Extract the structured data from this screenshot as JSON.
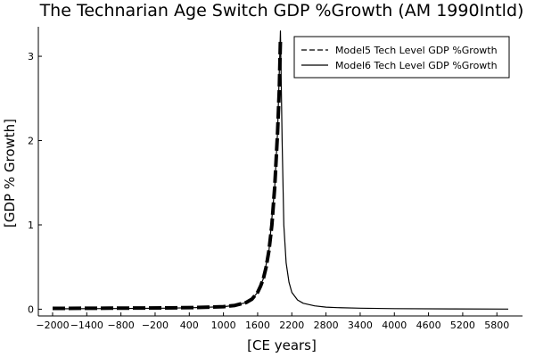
{
  "chart_data": {
    "type": "line",
    "title": "The Technarian Age Switch GDP %Growth (AM 1990Intld)",
    "xlabel": "[CE years]",
    "ylabel": "[GDP % Growth]",
    "xlim": [
      -2250,
      6250
    ],
    "ylim": [
      -0.08,
      3.35
    ],
    "x_ticks": [
      -2000,
      -1400,
      -800,
      -200,
      400,
      1000,
      1600,
      2200,
      2800,
      3400,
      4000,
      4600,
      5200,
      5800
    ],
    "x_tick_labels": [
      "−2000",
      "−1400",
      "−800",
      "−200",
      "400",
      "1000",
      "1600",
      "2200",
      "2800",
      "3400",
      "4000",
      "4600",
      "5200",
      "5800"
    ],
    "y_ticks": [
      0,
      1,
      2,
      3
    ],
    "y_tick_labels": [
      "0",
      "1",
      "2",
      "3"
    ],
    "grid": false,
    "legend_position": "top-right",
    "series": [
      {
        "name": "Model5 Tech Level GDP %Growth",
        "style": "dashed",
        "color": "#000000",
        "x": [
          -2000,
          -1000,
          0,
          500,
          1000,
          1200,
          1400,
          1500,
          1600,
          1650,
          1700,
          1750,
          1800,
          1850,
          1900,
          1950,
          1980,
          2000
        ],
        "y": [
          0.01,
          0.012,
          0.015,
          0.02,
          0.03,
          0.045,
          0.08,
          0.12,
          0.2,
          0.27,
          0.36,
          0.5,
          0.7,
          1.0,
          1.45,
          2.1,
          2.6,
          3.2
        ]
      },
      {
        "name": "Model6 Tech Level GDP %Growth",
        "style": "solid",
        "color": "#000000",
        "x": [
          -2000,
          -1000,
          0,
          500,
          1000,
          1200,
          1400,
          1500,
          1600,
          1700,
          1800,
          1900,
          1950,
          1980,
          2000,
          2010,
          2030,
          2060,
          2100,
          2150,
          2200,
          2300,
          2400,
          2600,
          2800,
          3000,
          3400,
          4000,
          5000,
          6000
        ],
        "y": [
          0.005,
          0.008,
          0.012,
          0.018,
          0.03,
          0.045,
          0.08,
          0.12,
          0.2,
          0.36,
          0.7,
          1.45,
          2.1,
          2.8,
          3.3,
          2.9,
          2.0,
          1.0,
          0.55,
          0.32,
          0.2,
          0.11,
          0.07,
          0.04,
          0.025,
          0.018,
          0.012,
          0.007,
          0.004,
          0.002
        ]
      }
    ]
  }
}
